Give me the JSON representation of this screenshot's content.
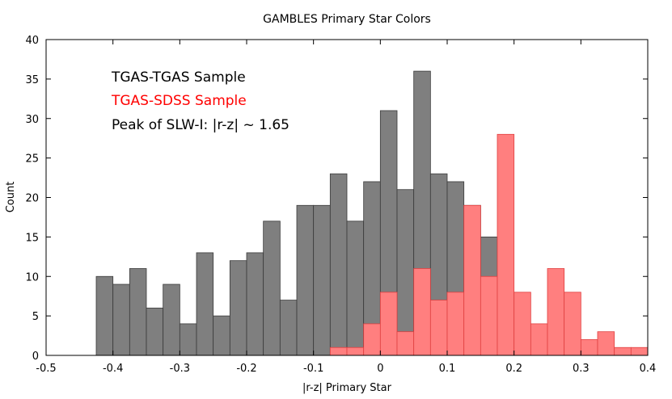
{
  "chart_data": {
    "type": "bar",
    "title": "GAMBLES Primary Star Colors",
    "xlabel": "|r-z|  Primary Star",
    "ylabel": "Count",
    "xlim": [
      -0.5,
      0.4
    ],
    "ylim": [
      0,
      40
    ],
    "x_ticks": [
      "-0.5",
      "-0.4",
      "-0.3",
      "-0.2",
      "-0.1",
      "0",
      "0.1",
      "0.2",
      "0.3",
      "0.4"
    ],
    "y_ticks": [
      "0",
      "5",
      "10",
      "15",
      "20",
      "25",
      "30",
      "35",
      "40"
    ],
    "bin_width": 0.025,
    "series": [
      {
        "name": "TGAS-TGAS Sample",
        "color": "#7f7f7f",
        "bin_starts": [
          -0.425,
          -0.4,
          -0.375,
          -0.35,
          -0.325,
          -0.3,
          -0.275,
          -0.25,
          -0.225,
          -0.2,
          -0.175,
          -0.15,
          -0.125,
          -0.1,
          -0.075,
          -0.05,
          -0.025,
          0.0,
          0.025,
          0.05,
          0.075,
          0.1,
          0.125,
          0.15
        ],
        "values": [
          10,
          9,
          11,
          6,
          9,
          4,
          13,
          5,
          12,
          13,
          17,
          7,
          19,
          19,
          23,
          17,
          22,
          31,
          21,
          36,
          23,
          22,
          19,
          15
        ]
      },
      {
        "name": "TGAS-SDSS Sample",
        "color": "#ff7f7f",
        "bin_starts": [
          -0.075,
          -0.05,
          -0.025,
          0.0,
          0.025,
          0.05,
          0.075,
          0.1,
          0.125,
          0.15,
          0.175,
          0.2,
          0.225,
          0.25,
          0.275,
          0.3,
          0.325,
          0.35,
          0.375
        ],
        "values": [
          1,
          1,
          4,
          8,
          3,
          11,
          7,
          8,
          19,
          10,
          28,
          8,
          4,
          11,
          8,
          2,
          3,
          1,
          1
        ]
      }
    ],
    "annotations": [
      "TGAS-TGAS Sample",
      "TGAS-SDSS Sample",
      "Peak of SLW-I: |r-z| ~ 1.65"
    ]
  }
}
